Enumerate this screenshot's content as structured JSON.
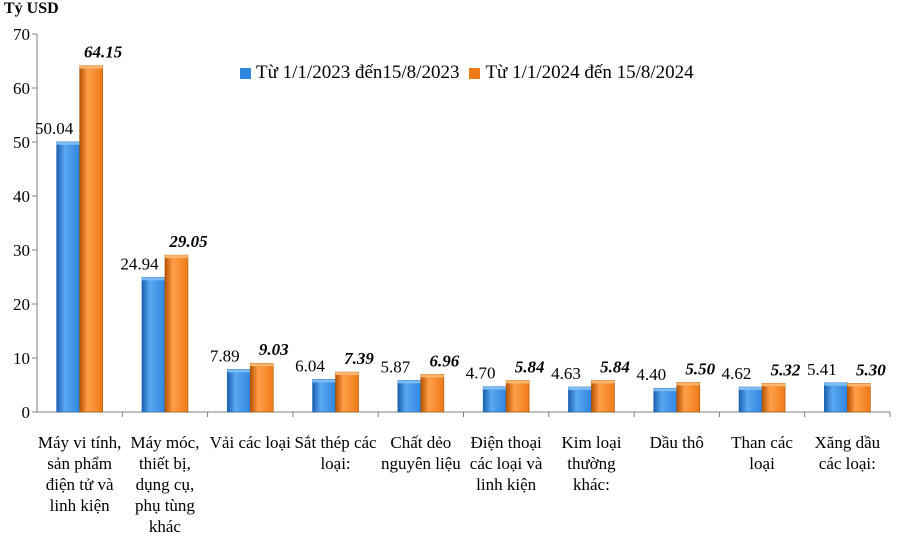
{
  "chart_data": {
    "type": "bar",
    "ylabel": "Tỷ USD",
    "ylim": [
      0,
      70
    ],
    "yticks": [
      0,
      10,
      20,
      30,
      40,
      50,
      60,
      70
    ],
    "categories": [
      "Máy vi tính, sản phẩm điện tử và linh kiện",
      "Máy móc, thiết bị, dụng cụ, phụ tùng khác",
      "Vải các loại",
      "Sắt thép các loại:",
      "Chất dẻo nguyên liệu",
      "Điện thoại các loại và linh kiện",
      "Kim loại thường khác:",
      "Dầu thô",
      "Than các loại",
      "Xăng dầu các loại:"
    ],
    "series": [
      {
        "name": "Từ 1/1/2023 đến15/8/2023",
        "values": [
          50.04,
          24.94,
          7.89,
          6.04,
          5.87,
          4.7,
          4.63,
          4.4,
          4.62,
          5.41
        ],
        "labels": [
          "50.04",
          "24.94",
          "7.89",
          "6.04",
          "5.87",
          "4.70",
          "4.63",
          "4.40",
          "4.62",
          "5.41"
        ]
      },
      {
        "name": "Từ 1/1/2024 đến 15/8/2024",
        "values": [
          64.15,
          29.05,
          9.03,
          7.39,
          6.96,
          5.84,
          5.84,
          5.5,
          5.32,
          5.3
        ],
        "labels": [
          "64.15",
          "29.05",
          "9.03",
          "7.39",
          "6.96",
          "5.84",
          "5.84",
          "5.50",
          "5.32",
          "5.30"
        ]
      }
    ],
    "legend_position": "top-right",
    "grid": false
  },
  "colors": {
    "series_2023": "#2f86e0",
    "series_2024": "#ee7a16",
    "axis": "#808080"
  }
}
